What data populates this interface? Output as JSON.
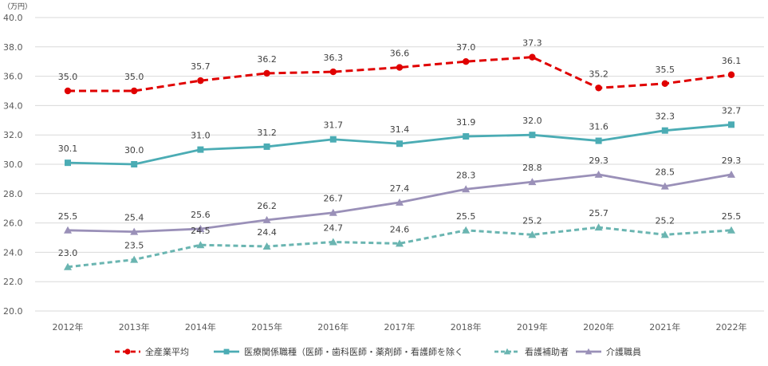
{
  "chart_data": {
    "type": "line",
    "title": "",
    "unit_label": "（万円）",
    "xlabel": "",
    "ylabel": "",
    "categories": [
      "2012年",
      "2013年",
      "2014年",
      "2015年",
      "2016年",
      "2017年",
      "2018年",
      "2019年",
      "2020年",
      "2021年",
      "2022年"
    ],
    "ylim": [
      20.0,
      40.0
    ],
    "ytick_step": 2.0,
    "yticks": [
      "20.0",
      "22.0",
      "24.0",
      "26.0",
      "28.0",
      "30.0",
      "32.0",
      "34.0",
      "36.0",
      "38.0",
      "40.0"
    ],
    "grid": true,
    "legend_position": "bottom",
    "series": [
      {
        "name": "全産業平均",
        "color": "#e00000",
        "dash": "dashed",
        "marker": "circle",
        "values": [
          35.0,
          35.0,
          35.7,
          36.2,
          36.3,
          36.6,
          37.0,
          37.3,
          35.2,
          35.5,
          36.1
        ],
        "labels": [
          "35.0",
          "35.0",
          "35.7",
          "36.2",
          "36.3",
          "36.6",
          "37.0",
          "37.3",
          "35.2",
          "35.5",
          "36.1"
        ]
      },
      {
        "name": "医療関係職種（医師・歯科医師・薬剤師・看護師を除く",
        "color": "#4bacb4",
        "dash": "solid",
        "marker": "square",
        "values": [
          30.1,
          30.0,
          31.0,
          31.2,
          31.7,
          31.4,
          31.9,
          32.0,
          31.6,
          32.3,
          32.7
        ],
        "labels": [
          "30.1",
          "30.0",
          "31.0",
          "31.2",
          "31.7",
          "31.4",
          "31.9",
          "32.0",
          "31.6",
          "32.3",
          "32.7"
        ]
      },
      {
        "name": "看護補助者",
        "color": "#6ab5b1",
        "dash": "dashed",
        "marker": "triangle",
        "values": [
          23.0,
          23.5,
          24.5,
          24.4,
          24.7,
          24.6,
          25.5,
          25.2,
          25.7,
          25.2,
          25.5
        ],
        "labels": [
          "23.0",
          "23.5",
          "24.5",
          "24.4",
          "24.7",
          "24.6",
          "25.5",
          "25.2",
          "25.7",
          "25.2",
          "25.5"
        ]
      },
      {
        "name": "介護職員",
        "color": "#9a90b8",
        "dash": "solid",
        "marker": "triangle",
        "values": [
          25.5,
          25.4,
          25.6,
          26.2,
          26.7,
          27.4,
          28.3,
          28.8,
          29.3,
          28.5,
          29.3
        ],
        "labels": [
          "25.5",
          "25.4",
          "25.6",
          "26.2",
          "26.7",
          "27.4",
          "28.3",
          "28.8",
          "29.3",
          "28.5",
          "29.3"
        ]
      }
    ]
  }
}
